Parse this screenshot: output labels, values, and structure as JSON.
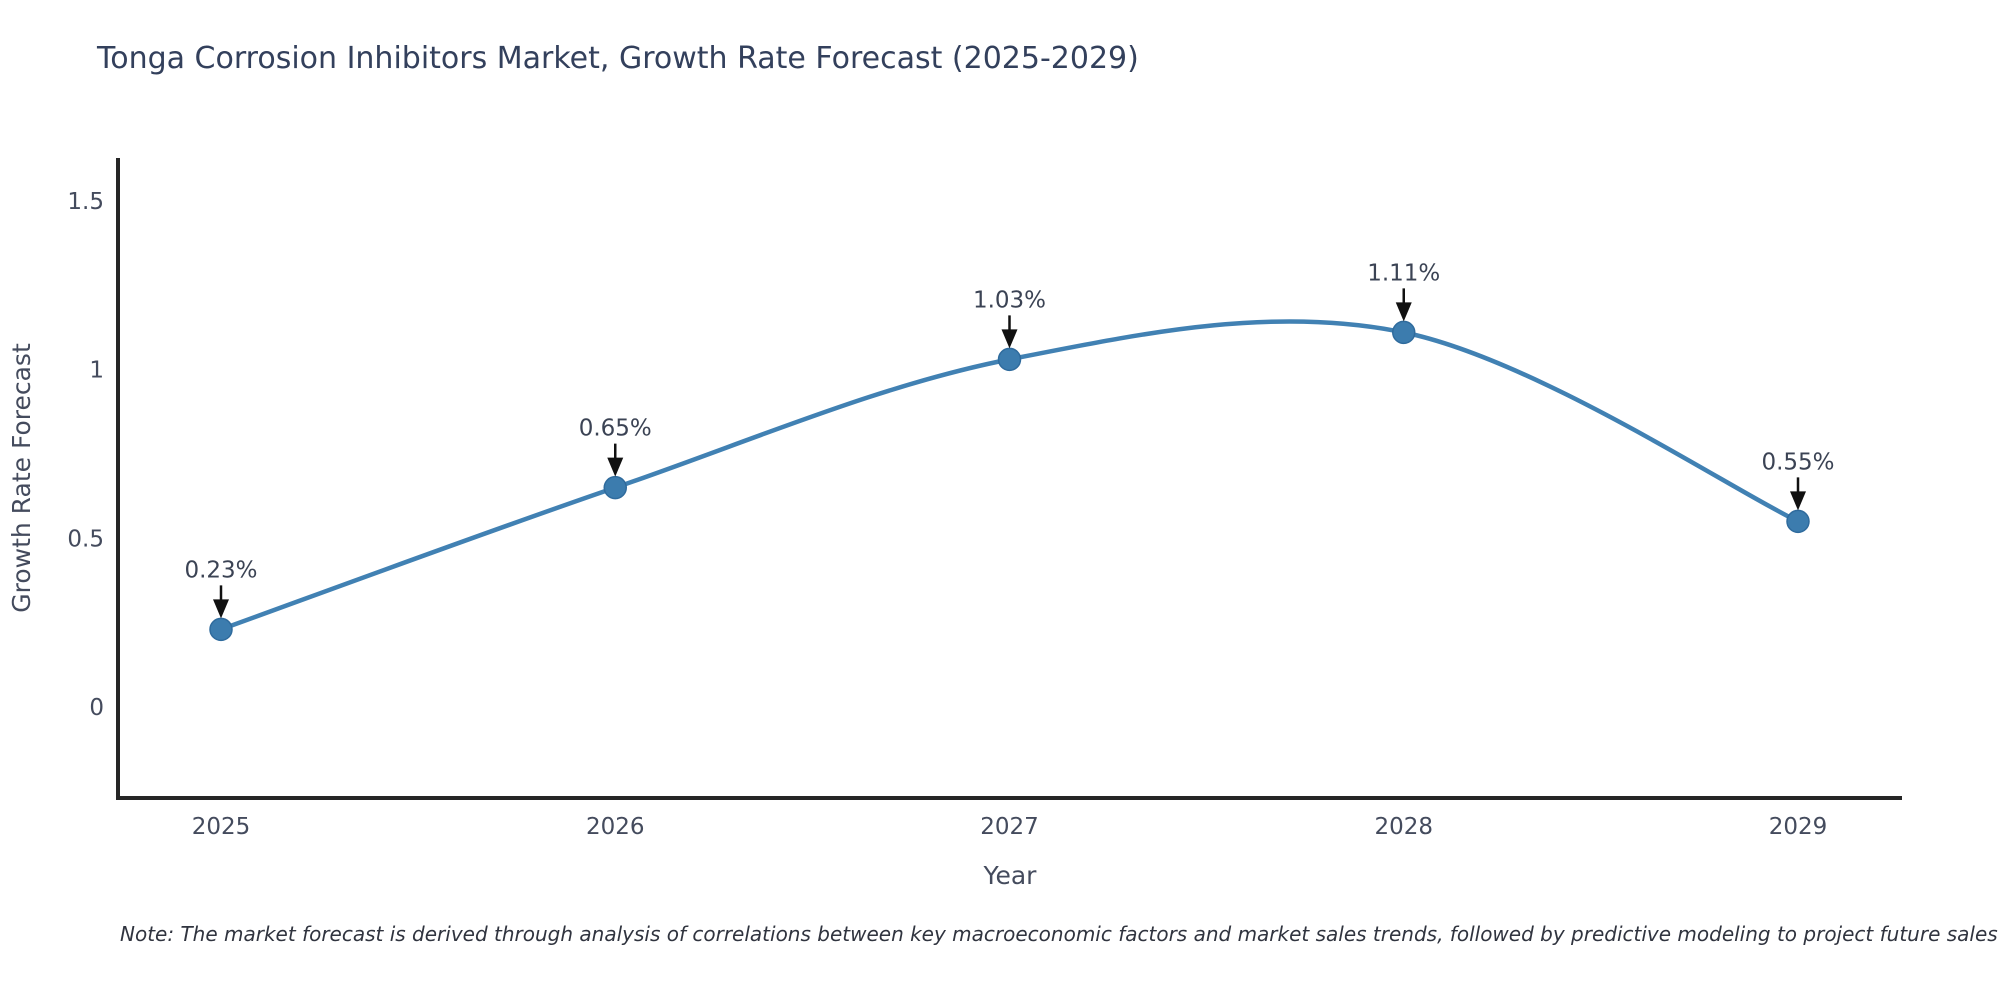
{
  "chart": {
    "title": "Tonga Corrosion Inhibitors Market, Growth Rate Forecast (2025-2029)",
    "note": "Note: The market forecast is derived through analysis of correlations between key macroeconomic factors and market sales trends, followed by predictive modeling to project future sales",
    "x_axis": {
      "title": "Year",
      "tick_labels": [
        "2025",
        "2026",
        "2027",
        "2028",
        "2029"
      ]
    },
    "y_axis": {
      "title": "Growth Rate Forecast",
      "ticks": [
        0,
        0.5,
        1,
        1.5
      ],
      "tick_labels": [
        "0",
        "0.5",
        "1",
        "1.5"
      ]
    },
    "colors": {
      "line": "#4181b3",
      "marker_fill": "#3c7cae",
      "marker_stroke": "#2f6b9d",
      "axis_line": "#262626",
      "tick_text": "#444b5d",
      "annotation_text": "#3b4354",
      "arrow": "#111111",
      "title_text": "#33405c",
      "background": "#ffffff"
    }
  },
  "chart_data": {
    "type": "line",
    "title": "Tonga Corrosion Inhibitors Market, Growth Rate Forecast (2025-2029)",
    "xlabel": "Year",
    "ylabel": "Growth Rate Forecast",
    "x": [
      "2025",
      "2026",
      "2027",
      "2028",
      "2029"
    ],
    "values": [
      0.23,
      0.65,
      1.03,
      1.11,
      0.55
    ],
    "point_labels": [
      "0.23%",
      "0.65%",
      "1.03%",
      "1.11%",
      "0.55%"
    ],
    "line_shape": "spline",
    "markers": true,
    "ylim": [
      -0.27,
      1.63
    ],
    "y_ticks": [
      0,
      0.5,
      1,
      1.5
    ],
    "grid": false,
    "legend": false,
    "annotations": "value labels with downward arrows above each point"
  }
}
